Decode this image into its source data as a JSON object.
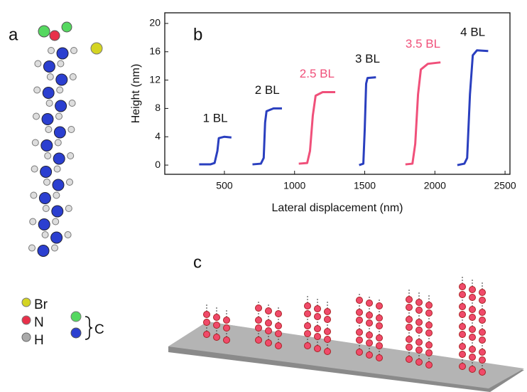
{
  "panels": {
    "a": "a",
    "b": "b",
    "c": "c"
  },
  "legend": {
    "br": "Br",
    "n": "N",
    "h": "H",
    "c": "C"
  },
  "chart_data": {
    "type": "line",
    "xlabel": "Lateral displacement (nm)",
    "ylabel": "Height (nm)",
    "xlim": [
      75,
      2535
    ],
    "ylim": [
      -1.3,
      21.5
    ],
    "xticks": [
      500,
      1000,
      1500,
      2000,
      2500
    ],
    "yticks": [
      0,
      4,
      8,
      12,
      16,
      20
    ],
    "series": [
      {
        "name": "1 BL",
        "color": "#2a3fbf",
        "x": [
          320,
          400,
          430,
          450,
          460,
          500,
          550
        ],
        "values": [
          0.1,
          0.1,
          0.3,
          2,
          3.8,
          4,
          3.9
        ]
      },
      {
        "name": "2 BL",
        "color": "#2a3fbf",
        "x": [
          700,
          760,
          780,
          790,
          800,
          850,
          910
        ],
        "values": [
          0.1,
          0.2,
          1,
          6,
          7.6,
          8,
          8
        ]
      },
      {
        "name": "2.5 BL",
        "color": "#f0507a",
        "x": [
          1030,
          1090,
          1110,
          1130,
          1150,
          1200,
          1290
        ],
        "values": [
          0.2,
          0.3,
          2,
          7,
          9.8,
          10.3,
          10.3
        ]
      },
      {
        "name": "3 BL",
        "color": "#2a3fbf",
        "x": [
          1460,
          1490,
          1500,
          1510,
          1520,
          1580
        ],
        "values": [
          0,
          0.2,
          5,
          11.5,
          12.3,
          12.4
        ]
      },
      {
        "name": "3.5 BL",
        "color": "#f0507a",
        "x": [
          1790,
          1840,
          1860,
          1880,
          1900,
          1950,
          2040
        ],
        "values": [
          0.1,
          0.2,
          3,
          10,
          13.5,
          14.3,
          14.5
        ]
      },
      {
        "name": "4 BL",
        "color": "#2a3fbf",
        "x": [
          2160,
          2210,
          2230,
          2250,
          2270,
          2300,
          2380
        ],
        "values": [
          0,
          0.2,
          1,
          10,
          15.5,
          16.2,
          16.1
        ]
      }
    ]
  }
}
